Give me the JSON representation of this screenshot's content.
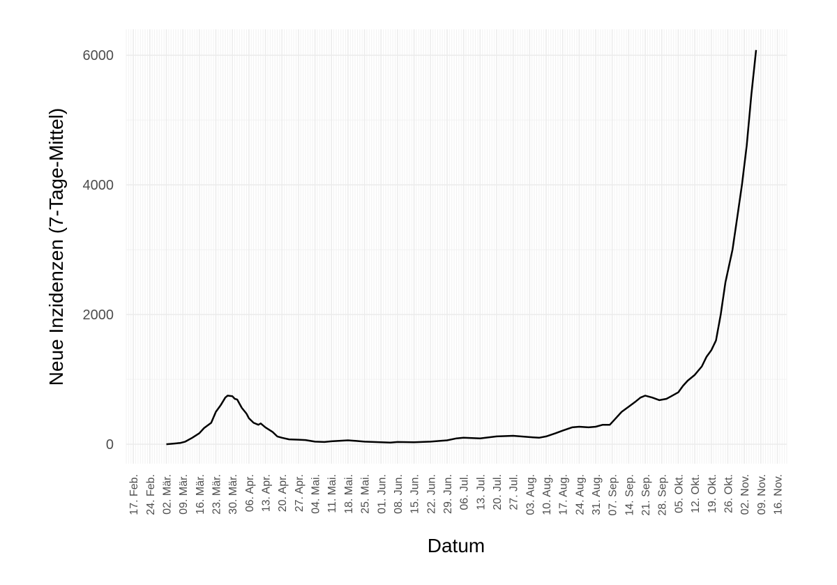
{
  "chart_data": {
    "type": "line",
    "x_label": "Datum",
    "y_label": "Neue Inzidenzen (7-Tage-Mittel)",
    "x": [
      "03-02",
      "03-05",
      "03-08",
      "03-10",
      "03-13",
      "03-16",
      "03-18",
      "03-21",
      "03-23",
      "03-25",
      "03-27",
      "03-28",
      "03-30",
      "03-31",
      "04-01",
      "04-03",
      "04-05",
      "04-06",
      "04-08",
      "04-10",
      "04-11",
      "04-13",
      "04-16",
      "04-18",
      "04-20",
      "04-23",
      "04-27",
      "04-30",
      "05-04",
      "05-08",
      "05-11",
      "05-18",
      "05-22",
      "05-25",
      "06-01",
      "06-05",
      "06-08",
      "06-15",
      "06-22",
      "06-29",
      "07-03",
      "07-06",
      "07-13",
      "07-20",
      "07-27",
      "08-03",
      "08-07",
      "08-10",
      "08-14",
      "08-17",
      "08-21",
      "08-24",
      "08-28",
      "08-31",
      "09-03",
      "09-06",
      "09-08",
      "09-11",
      "09-14",
      "09-17",
      "09-19",
      "09-21",
      "09-24",
      "09-27",
      "09-30",
      "10-02",
      "10-05",
      "10-07",
      "10-09",
      "10-12",
      "10-15",
      "10-17",
      "10-19",
      "10-21",
      "10-23",
      "10-25",
      "10-28",
      "10-30",
      "11-01",
      "11-03",
      "11-05",
      "11-07"
    ],
    "series": [
      {
        "color": "#000000",
        "values": [
          0,
          10,
          20,
          40,
          100,
          170,
          250,
          330,
          500,
          600,
          720,
          750,
          740,
          700,
          690,
          560,
          470,
          400,
          330,
          300,
          320,
          260,
          190,
          120,
          100,
          75,
          70,
          65,
          40,
          35,
          45,
          60,
          50,
          40,
          30,
          25,
          35,
          30,
          40,
          60,
          90,
          100,
          90,
          120,
          130,
          110,
          100,
          120,
          170,
          210,
          260,
          270,
          260,
          270,
          300,
          300,
          380,
          500,
          580,
          660,
          720,
          750,
          720,
          680,
          700,
          740,
          800,
          900,
          980,
          1070,
          1200,
          1350,
          1450,
          1600,
          2000,
          2500,
          3000,
          3500,
          4000,
          4600,
          5400,
          6080
        ]
      }
    ],
    "xlim": [
      "02-14",
      "11-20"
    ],
    "xticks": [
      {
        "value": "02-17",
        "label": "17. Feb."
      },
      {
        "value": "02-24",
        "label": "24. Feb."
      },
      {
        "value": "03-02",
        "label": "02. Mär."
      },
      {
        "value": "03-09",
        "label": "09. Mär."
      },
      {
        "value": "03-16",
        "label": "16. Mär."
      },
      {
        "value": "03-23",
        "label": "23. Mär."
      },
      {
        "value": "03-30",
        "label": "30. Mär."
      },
      {
        "value": "04-06",
        "label": "06. Apr."
      },
      {
        "value": "04-13",
        "label": "13. Apr."
      },
      {
        "value": "04-20",
        "label": "20. Apr."
      },
      {
        "value": "04-27",
        "label": "27. Apr."
      },
      {
        "value": "05-04",
        "label": "04. Mai."
      },
      {
        "value": "05-11",
        "label": "11. Mai."
      },
      {
        "value": "05-18",
        "label": "18. Mai."
      },
      {
        "value": "05-25",
        "label": "25. Mai."
      },
      {
        "value": "06-01",
        "label": "01. Jun."
      },
      {
        "value": "06-08",
        "label": "08. Jun."
      },
      {
        "value": "06-15",
        "label": "15. Jun."
      },
      {
        "value": "06-22",
        "label": "22. Jun."
      },
      {
        "value": "06-29",
        "label": "29. Jun."
      },
      {
        "value": "07-06",
        "label": "06. Jul."
      },
      {
        "value": "07-13",
        "label": "13. Jul."
      },
      {
        "value": "07-20",
        "label": "20. Jul."
      },
      {
        "value": "07-27",
        "label": "27. Jul."
      },
      {
        "value": "08-03",
        "label": "03. Aug."
      },
      {
        "value": "08-10",
        "label": "10. Aug."
      },
      {
        "value": "08-17",
        "label": "17. Aug."
      },
      {
        "value": "08-24",
        "label": "24. Aug."
      },
      {
        "value": "08-31",
        "label": "31. Aug."
      },
      {
        "value": "09-07",
        "label": "07. Sep."
      },
      {
        "value": "09-14",
        "label": "14. Sep."
      },
      {
        "value": "09-21",
        "label": "21. Sep."
      },
      {
        "value": "09-28",
        "label": "28. Sep."
      },
      {
        "value": "10-05",
        "label": "05. Okt."
      },
      {
        "value": "10-12",
        "label": "12. Okt."
      },
      {
        "value": "10-19",
        "label": "19. Okt."
      },
      {
        "value": "10-26",
        "label": "26. Okt."
      },
      {
        "value": "11-02",
        "label": "02. Nov."
      },
      {
        "value": "11-09",
        "label": "09. Nov."
      },
      {
        "value": "11-16",
        "label": "16. Nov."
      }
    ],
    "ylim": [
      -300,
      6400
    ],
    "yticks": [
      0,
      2000,
      4000,
      6000
    ],
    "y_minor_grid": [
      1000,
      3000,
      5000
    ],
    "grid": true
  }
}
